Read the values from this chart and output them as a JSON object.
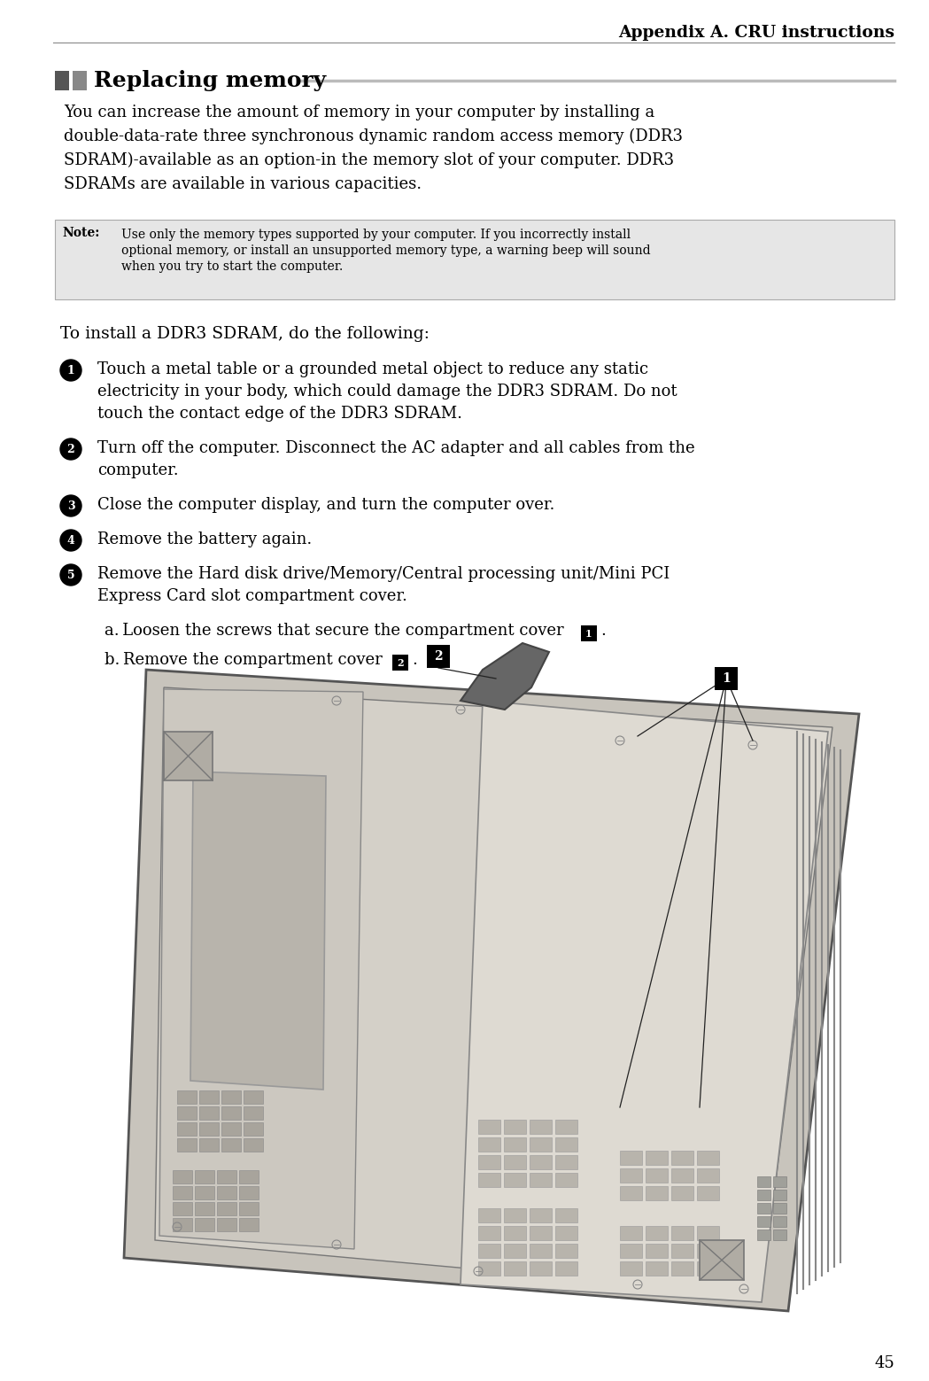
{
  "page_title": "Appendix A. CRU instructions",
  "section_title": "Replacing memory",
  "bg_color": "#ffffff",
  "section_squares_color": "#555555",
  "note_bg_color": "#e6e6e6",
  "note_border_color": "#999999",
  "body_text": "You can increase the amount of memory in your computer by installing a double-data-rate three synchronous dynamic random access memory (DDR3 SDRAM)-available as an option-in the memory slot of your computer. DDR3 SDRAMs are available in various capacities.",
  "note_label": "Note:",
  "note_text": "Use only the memory types supported by your computer. If you incorrectly install optional memory, or install an unsupported memory type, a warning beep will sound when you try to start the computer.",
  "install_intro": "To install a DDR3 SDRAM, do the following:",
  "steps": [
    "Touch a metal table or a grounded metal object to reduce any static electricity in your body, which could damage the DDR3 SDRAM. Do not touch the contact edge of the DDR3 SDRAM.",
    "Turn off the computer. Disconnect the AC adapter and all cables from the computer.",
    "Close the computer display, and turn the computer over.",
    "Remove the battery again.",
    "Remove the Hard disk drive/Memory/Central processing unit/Mini PCI Express Card slot compartment cover."
  ],
  "page_number": "45"
}
